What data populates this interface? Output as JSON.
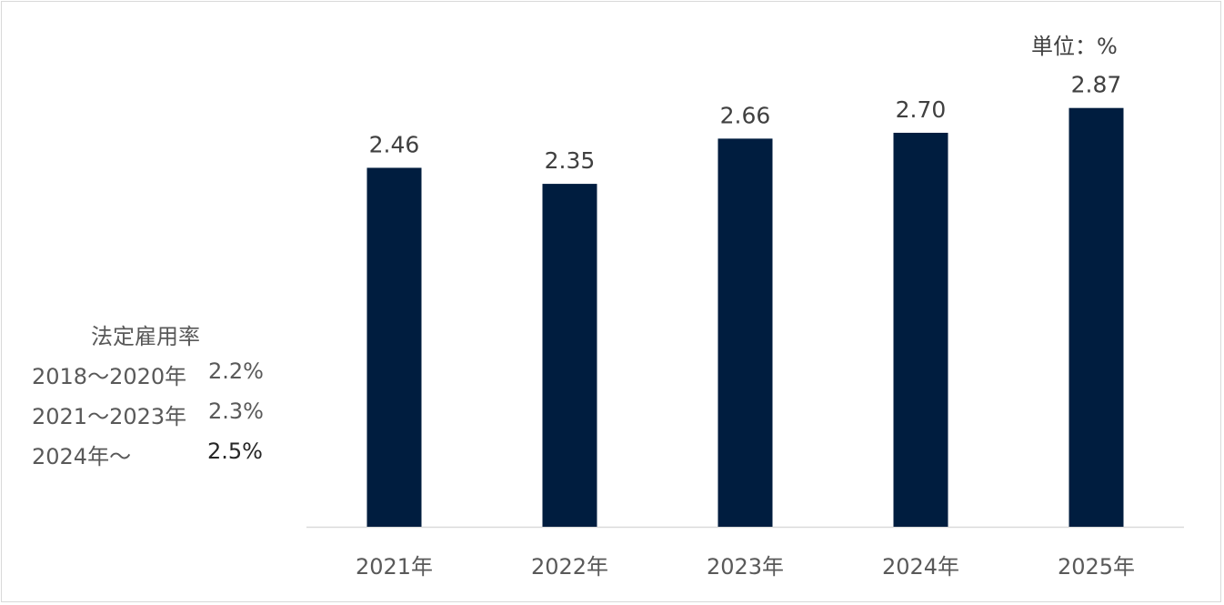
{
  "chart_data": {
    "type": "bar",
    "categories": [
      "2021年",
      "2022年",
      "2023年",
      "2024年",
      "2025年"
    ],
    "values": [
      2.46,
      2.35,
      2.66,
      2.7,
      2.87
    ],
    "value_labels": [
      "2.46",
      "2.35",
      "2.66",
      "2.70",
      "2.87"
    ],
    "ylim": [
      0,
      3.61
    ],
    "bar_color": "#001d3f",
    "unit_label": "単位：%",
    "legend": "none",
    "grid": false
  },
  "legal_rate": {
    "title": "法定雇用率",
    "rows": [
      {
        "period": "2018～2020年",
        "rate": "2.2%"
      },
      {
        "period": "2021～2023年",
        "rate": "2.3%"
      },
      {
        "period": "2024年～",
        "rate": "2.5%"
      }
    ]
  }
}
